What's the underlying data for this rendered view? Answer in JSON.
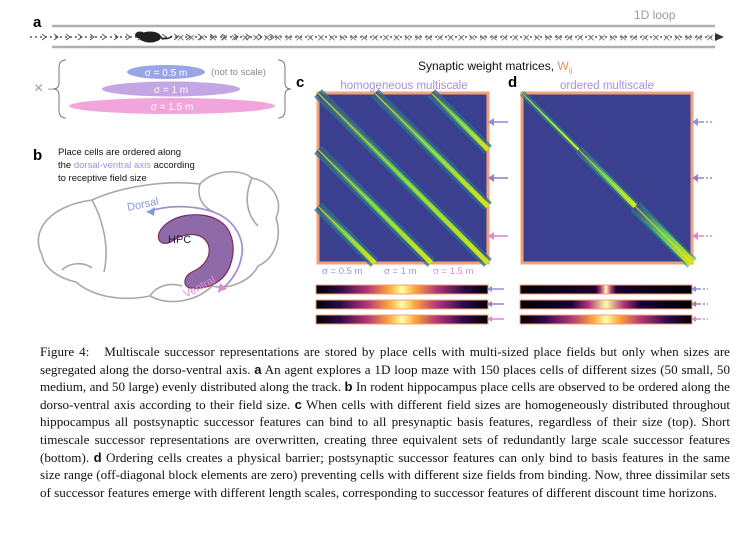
{
  "panel_a": {
    "letter": "a",
    "loop_label": "1D loop",
    "cross_marker": "×",
    "ellipse_labels": [
      "σ = 0.5 m",
      "σ = 1 m",
      "σ = 1.5 m"
    ],
    "scale_note": "(not to scale)"
  },
  "panel_b": {
    "letter": "b",
    "text_line1": "Place cells are ordered along",
    "text_line2_pre": "the ",
    "text_line2_colored": "dorsal-ventral axis",
    "text_line2_post": " according",
    "text_line3": "to receptive field size",
    "hpc_label": "HPC",
    "dorsal_label": "Dorsal",
    "ventral_label": "Ventral"
  },
  "weights_title": {
    "main": "Synaptic weight matrices, ",
    "symbol": "W",
    "subscript": "ij"
  },
  "panel_c": {
    "letter": "c",
    "title": "homogeneous multiscale",
    "sigma_labels": [
      "σ = 0.5 m",
      "σ = 1 m",
      "σ = 1.5 m"
    ]
  },
  "panel_d": {
    "letter": "d",
    "title": "ordered multiscale"
  },
  "colors": {
    "orange": "#f28c5a",
    "purple": "#a98fd1",
    "blue": "#8796db",
    "violet": "#9b7fc4",
    "pink": "#e08bc9",
    "matrix_bg": "#3a3f8f",
    "brain_outline": "#a8a8a8",
    "hpc_fill": "#8e6aa8"
  },
  "caption": {
    "label": "Figure 4:",
    "intro": "Multiscale successor representations are stored by place cells with multi-sized place fields but only when sizes are segregated along the dorso-ventral axis.",
    "a_letter": "a",
    "a_text": "An agent explores a 1D loop maze with 150 places cells of different sizes (50 small, 50 medium, and 50 large) evenly distributed along the track.",
    "b_letter": "b",
    "b_text": "In rodent hippocampus place cells are observed to be ordered along the dorso-ventral axis according to their field size.",
    "c_letter": "c",
    "c_text": "When cells with different field sizes are homogeneously distributed throughout hippocampus all postsynaptic successor features can bind to all presynaptic basis features, regardless of their size (top). Short timescale successor representations are overwritten, creating three equivalent sets of redundantly large scale successor features (bottom).",
    "d_letter": "d",
    "d_text": "Ordering cells creates a physical barrier; postsynaptic successor features can only bind to basis features in the same size range (off-diagonal block elements are zero) preventing cells with different size fields from binding. Now, three dissimilar sets of successor features emerge with different length scales, corresponding to successor features of different discount time horizons."
  }
}
